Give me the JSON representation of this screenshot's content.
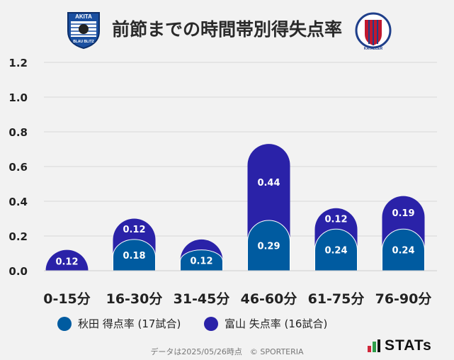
{
  "title": "前節までの時間帯別得失点率",
  "logos": {
    "left_text": "AKITA",
    "left_subtext": "BLAU BLITZ",
    "right_text": "KATALLER"
  },
  "colors": {
    "background": "#f2f2f2",
    "series_a": "#005ba0",
    "series_b": "#2a22a8",
    "grid": "#d8d8d8"
  },
  "chart_data": {
    "type": "bar",
    "stacked": true,
    "categories": [
      "0-15分",
      "16-30分",
      "31-45分",
      "46-60分",
      "61-75分",
      "76-90分"
    ],
    "series": [
      {
        "name": "秋田 得点率 (17試合)",
        "values": [
          0,
          0.18,
          0.12,
          0.29,
          0.24,
          0.24
        ],
        "labels": [
          "",
          "0.18",
          "0.12",
          "0.29",
          "0.24",
          "0.24"
        ]
      },
      {
        "name": "富山 失点率 (16試合)",
        "values": [
          0.12,
          0.12,
          0.06,
          0.44,
          0.12,
          0.19
        ],
        "labels": [
          "0.12",
          "0.12",
          "",
          "0.44",
          "0.12",
          "0.19"
        ]
      }
    ],
    "ylim": [
      0,
      1.2
    ],
    "yticks": [
      "0.0",
      "0.2",
      "0.4",
      "0.6",
      "0.8",
      "1.0",
      "1.2"
    ],
    "grid": true,
    "legend": "bottom"
  },
  "legend": {
    "a_label": "秋田 得点率 (17試合)",
    "b_label": "富山 失点率 (16試合)"
  },
  "footer": "データは2025/05/26時点　© SPORTERIA",
  "brand": "STATs"
}
